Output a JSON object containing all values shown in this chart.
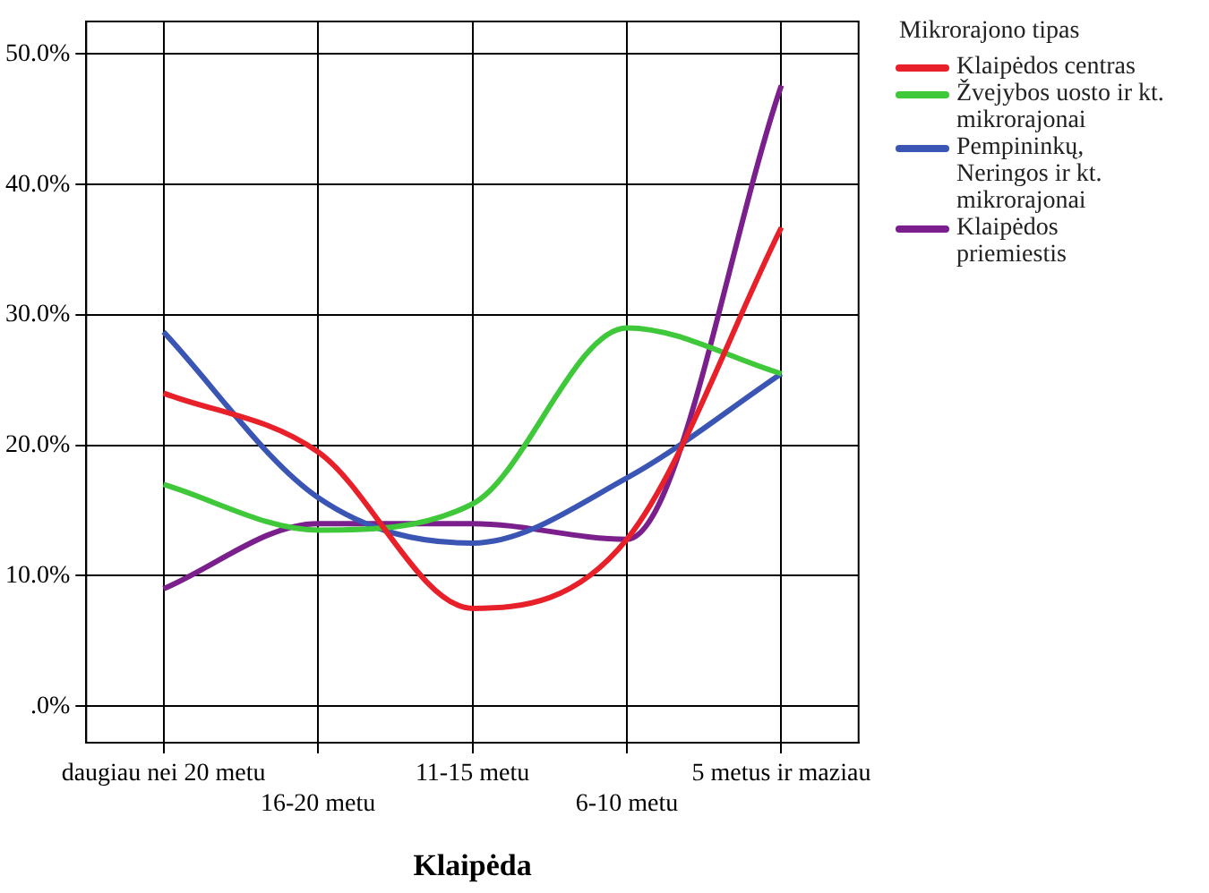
{
  "chart_data": {
    "type": "line",
    "xlabel": "Klaipėda",
    "legend_title": "Mikrorajono tipas",
    "categories": [
      "daugiau nei 20 metu",
      "16-20 metu",
      "11-15 metu",
      "6-10 metu",
      "5 metus ir maziau"
    ],
    "series": [
      {
        "name": "Klaipėdos centras",
        "color": "#e8202a",
        "values": [
          24.0,
          19.5,
          7.5,
          12.8,
          36.7
        ]
      },
      {
        "name": "Žvejybos uosto ir kt. mikrorajonai",
        "color": "#3ec83a",
        "values": [
          17.0,
          13.5,
          15.5,
          29.0,
          25.5
        ]
      },
      {
        "name": "Pempininkų, Neringos ir kt. mikrorajonai",
        "color": "#3a55b4",
        "values": [
          28.7,
          16.0,
          12.5,
          17.5,
          25.5
        ]
      },
      {
        "name": "Klaipėdos priemiestis",
        "color": "#7a1f8c",
        "values": [
          9.0,
          14.0,
          14.0,
          12.8,
          47.6
        ]
      }
    ],
    "ylim": [
      -2.8,
      52.5
    ],
    "yticks": [
      {
        "value": 0,
        "label": ".0%"
      },
      {
        "value": 10,
        "label": "10.0%"
      },
      {
        "value": 20,
        "label": "20.0%"
      },
      {
        "value": 30,
        "label": "30.0%"
      },
      {
        "value": 40,
        "label": "40.0%"
      },
      {
        "value": 50,
        "label": "50.0%"
      }
    ],
    "grid": true,
    "legend": "right",
    "marker": "none",
    "line_style": "solid"
  }
}
